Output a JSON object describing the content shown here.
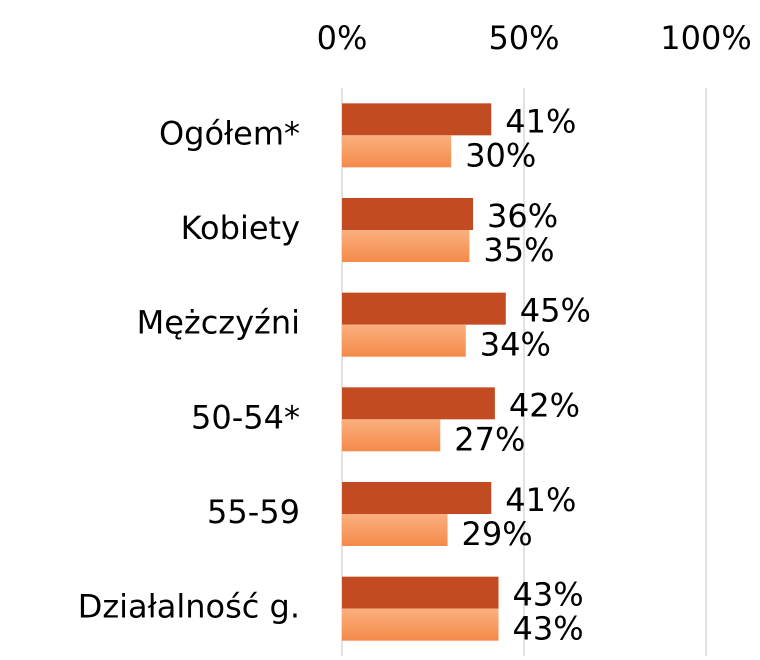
{
  "chart_data": {
    "type": "bar",
    "orientation": "horizontal",
    "categories": [
      "Ogółem*",
      "Kobiety",
      "Mężczyźni",
      "50-54*",
      "55-59",
      "Działalność g."
    ],
    "series": [
      {
        "color": "#c24b22",
        "values": [
          41,
          36,
          45,
          42,
          41,
          43
        ],
        "value_labels": [
          "41%",
          "36%",
          "45%",
          "42%",
          "41%",
          "43%"
        ]
      },
      {
        "color": "#f79a5e",
        "values": [
          30,
          35,
          34,
          27,
          29,
          43
        ],
        "value_labels": [
          "30%",
          "35%",
          "34%",
          "27%",
          "29%",
          "43%"
        ]
      }
    ],
    "xlim": [
      0,
      100
    ],
    "xticks": [
      {
        "value": 0,
        "label": "0%"
      },
      {
        "value": 50,
        "label": "50%"
      },
      {
        "value": 100,
        "label": "100%"
      }
    ],
    "grid": true
  }
}
